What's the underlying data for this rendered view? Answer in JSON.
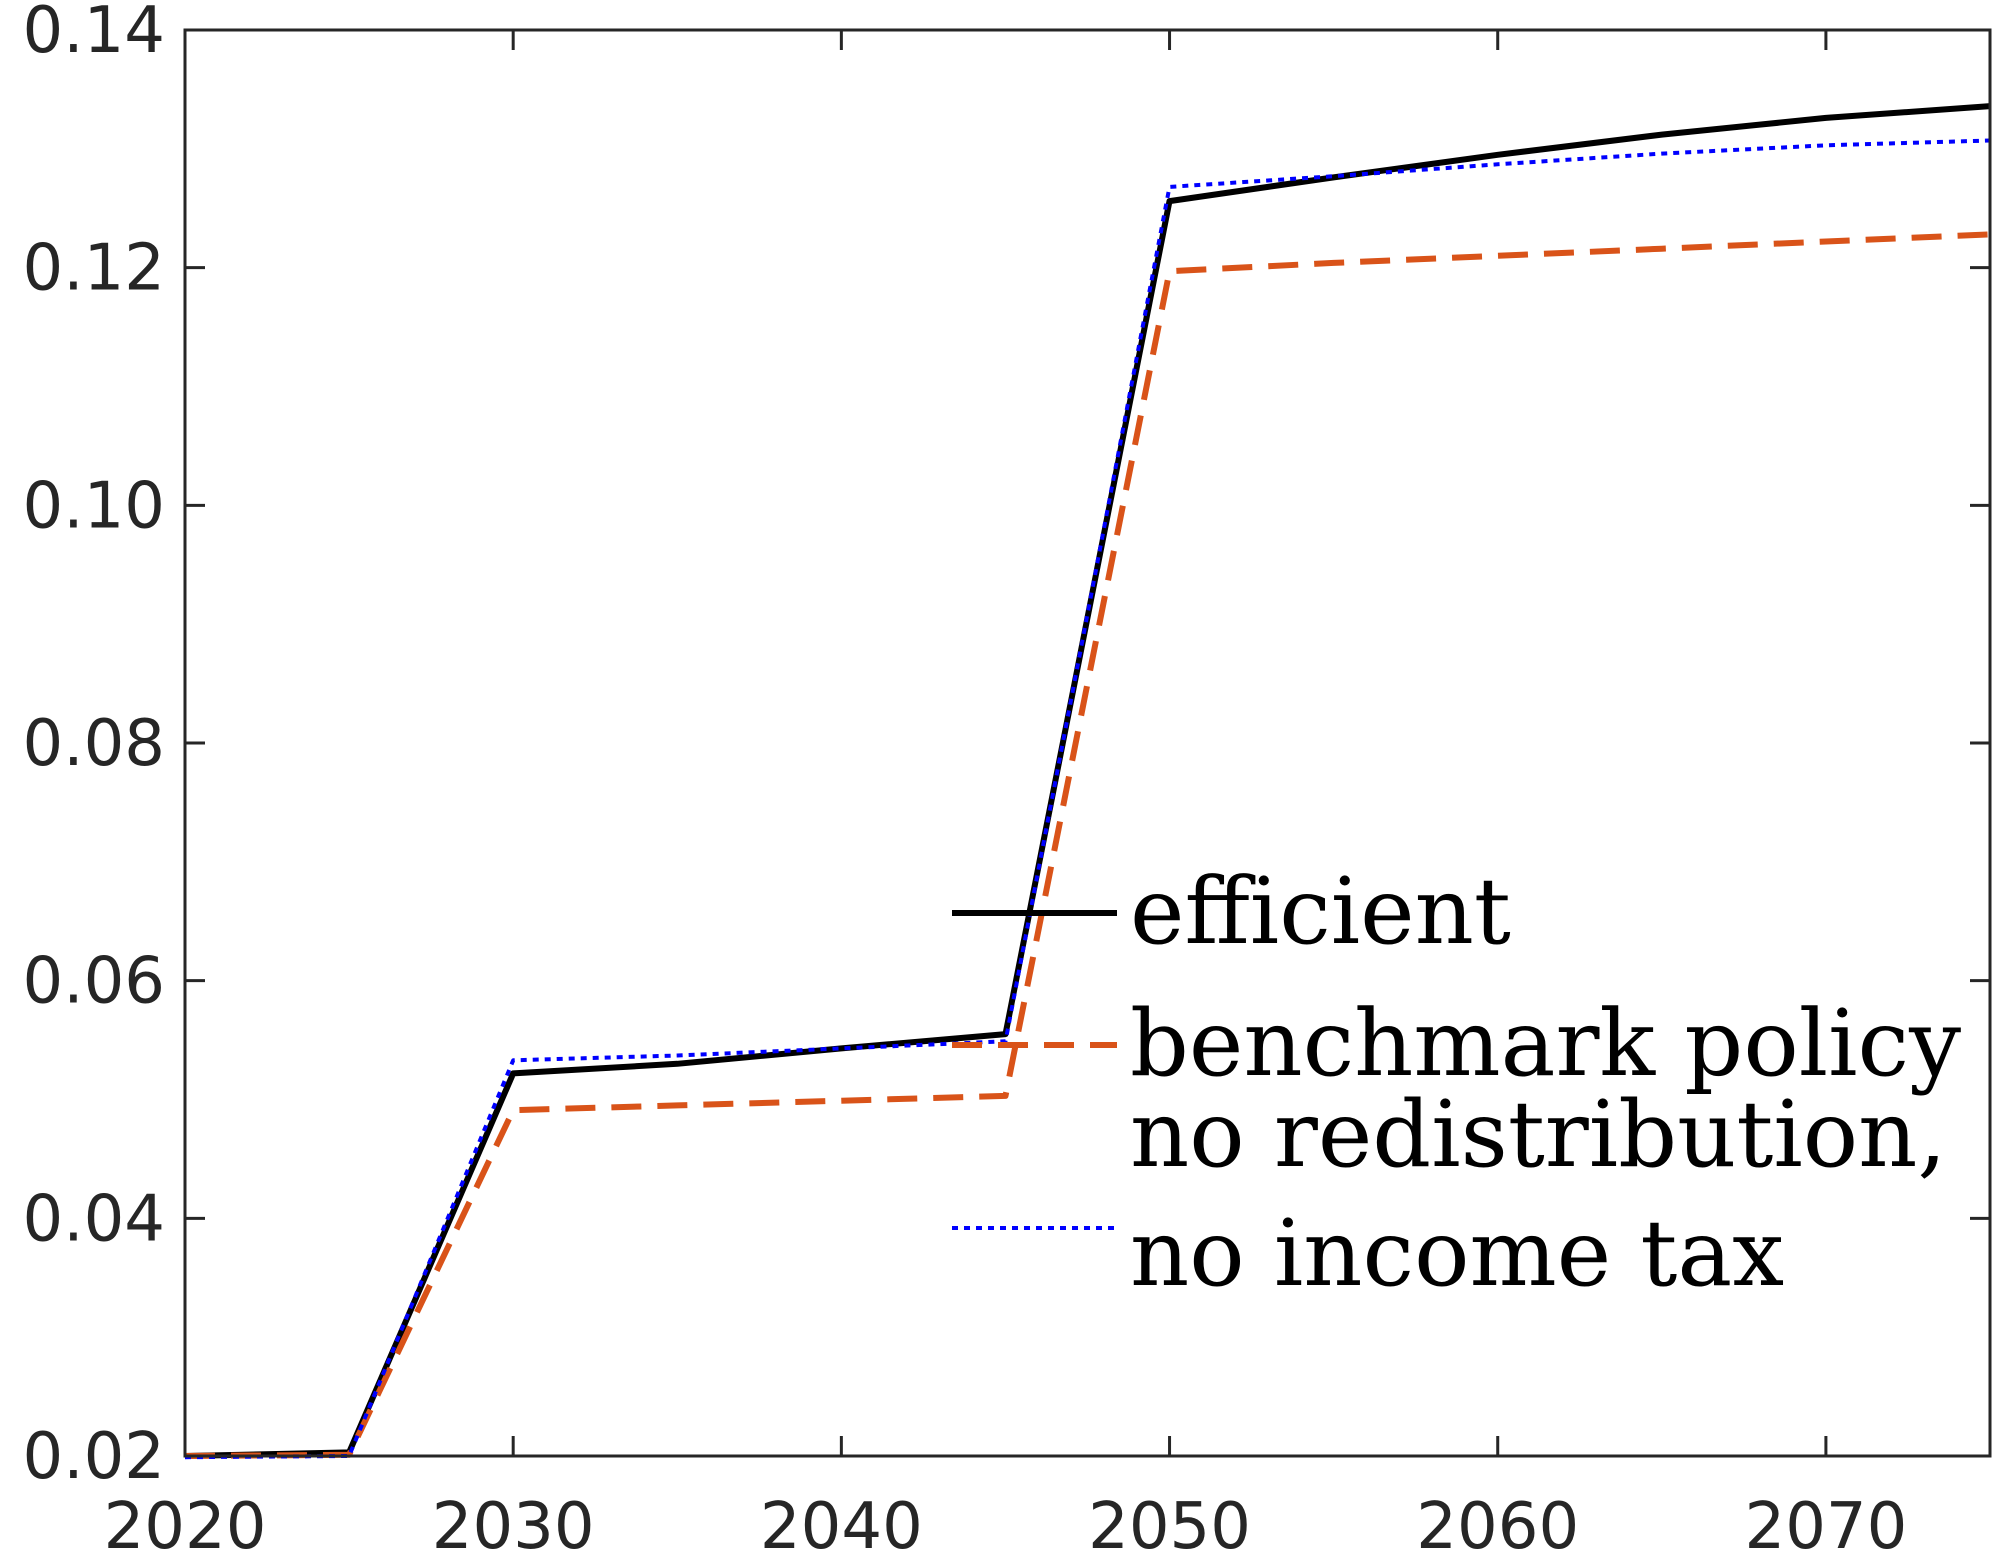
{
  "chart_data": {
    "type": "line",
    "title": "",
    "xlabel": "",
    "ylabel": "",
    "xlim": [
      2020,
      2075
    ],
    "ylim": [
      0.02,
      0.14
    ],
    "x_ticks": [
      2020,
      2030,
      2040,
      2050,
      2060,
      2070
    ],
    "x_tick_labels": [
      "2020",
      "2030",
      "2040",
      "2050",
      "2060",
      "2070"
    ],
    "y_ticks": [
      0.02,
      0.04,
      0.06,
      0.08,
      0.1,
      0.12,
      0.14
    ],
    "y_tick_labels": [
      "0.02",
      "0.04",
      "0.06",
      "0.08",
      "0.10",
      "0.12",
      "0.14"
    ],
    "grid": false,
    "legend_position": "center-right",
    "x": [
      2020,
      2025,
      2030,
      2035,
      2040,
      2045,
      2050,
      2055,
      2060,
      2065,
      2070,
      2075
    ],
    "series": [
      {
        "name": "efficient",
        "color": "#000000",
        "style": "solid",
        "values": [
          0.02,
          0.0203,
          0.0522,
          0.053,
          0.0543,
          0.0555,
          0.1256,
          0.1276,
          0.1295,
          0.1312,
          0.1326,
          0.1336
        ]
      },
      {
        "name": "benchmark policy",
        "color": "#d95319",
        "style": "dashed",
        "values": [
          0.02,
          0.0201,
          0.0491,
          0.0495,
          0.0499,
          0.0503,
          0.1197,
          0.1204,
          0.121,
          0.1216,
          0.1222,
          0.1228
        ]
      },
      {
        "name": "no redistribution, no income tax",
        "name_lines": [
          "no redistribution,",
          "no income tax"
        ],
        "color": "#0000ff",
        "style": "dotted",
        "values": [
          0.0199,
          0.02,
          0.0533,
          0.0537,
          0.0543,
          0.0549,
          0.1268,
          0.1277,
          0.1287,
          0.1296,
          0.1303,
          0.1307
        ]
      }
    ]
  }
}
